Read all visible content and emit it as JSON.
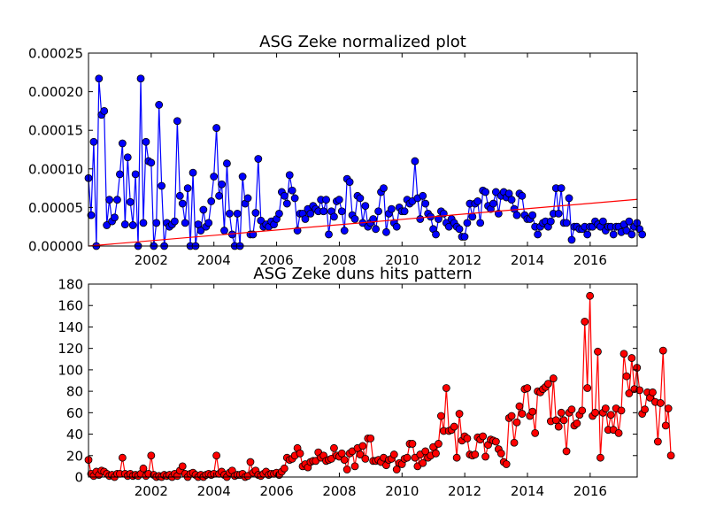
{
  "chart_data": [
    {
      "type": "line",
      "title": "ASG Zeke normalized plot",
      "xlabel": "",
      "ylabel": "",
      "xlim": [
        2000.0,
        2017.5
      ],
      "ylim": [
        0,
        0.00025
      ],
      "x_ticks": [
        "2002",
        "2004",
        "2006",
        "2008",
        "2010",
        "2012",
        "2014",
        "2016"
      ],
      "y_ticks": [
        "0.00000",
        "0.00005",
        "0.00010",
        "0.00015",
        "0.00020",
        "0.00025"
      ],
      "grid": false,
      "series": [
        {
          "color": "#0000ff",
          "marker": "circle",
          "x_start": 2000.0,
          "x_step": 0.0833,
          "values": [
            8.8e-05,
            4e-05,
            0.000135,
            0,
            0.000217,
            0.00017,
            0.000175,
            2.7e-05,
            6e-05,
            3.2e-05,
            3.7e-05,
            6e-05,
            9.3e-05,
            0.000133,
            2.8e-05,
            0.000115,
            5.7e-05,
            2.7e-05,
            9.3e-05,
            0,
            0.000217,
            3e-05,
            0.000135,
            0.00011,
            0.000108,
            0,
            3e-05,
            0.000183,
            7.8e-05,
            0,
            3e-05,
            2.5e-05,
            2.8e-05,
            3.2e-05,
            0.000162,
            6.5e-05,
            5.5e-05,
            3e-05,
            7.5e-05,
            0,
            9.5e-05,
            0,
            2.8e-05,
            2e-05,
            4.7e-05,
            2.5e-05,
            3e-05,
            5.8e-05,
            9e-05,
            0.000153,
            6.5e-05,
            8e-05,
            2e-05,
            0.000107,
            4.2e-05,
            1.5e-05,
            0,
            4.2e-05,
            0,
            9e-05,
            5.5e-05,
            6.2e-05,
            1.5e-05,
            1.5e-05,
            4.3e-05,
            0.000113,
            3.3e-05,
            2.5e-05,
            2.8e-05,
            2.5e-05,
            3.2e-05,
            2.8e-05,
            3.5e-05,
            4.2e-05,
            7e-05,
            6.5e-05,
            5.5e-05,
            9.2e-05,
            7.2e-05,
            6.2e-05,
            2e-05,
            4.2e-05,
            4.2e-05,
            3.5e-05,
            4.8e-05,
            4.2e-05,
            5.2e-05,
            4.8e-05,
            4.5e-05,
            6e-05,
            4.5e-05,
            6e-05,
            1.5e-05,
            4.5e-05,
            3.8e-05,
            5.8e-05,
            6e-05,
            4.5e-05,
            2e-05,
            8.7e-05,
            8.3e-05,
            4e-05,
            3.5e-05,
            6.5e-05,
            6.2e-05,
            3e-05,
            5.2e-05,
            2.5e-05,
            3e-05,
            3.5e-05,
            2.2e-05,
            4.5e-05,
            7e-05,
            7.5e-05,
            1.8e-05,
            4.2e-05,
            4.8e-05,
            3e-05,
            2.5e-05,
            5e-05,
            4.5e-05,
            4.5e-05,
            6e-05,
            5.5e-05,
            5.8e-05,
            0.00011,
            6.2e-05,
            3.5e-05,
            6.5e-05,
            5.5e-05,
            4.2e-05,
            3.8e-05,
            2.2e-05,
            1.5e-05,
            3.5e-05,
            4.5e-05,
            4.2e-05,
            3e-05,
            2.5e-05,
            3.5e-05,
            3e-05,
            2.5e-05,
            2.2e-05,
            1.2e-05,
            1.2e-05,
            3e-05,
            5.5e-05,
            3.8e-05,
            5.5e-05,
            5.8e-05,
            3e-05,
            7.2e-05,
            7e-05,
            5.2e-05,
            4.8e-05,
            5.5e-05,
            7e-05,
            4.2e-05,
            6.5e-05,
            7e-05,
            6.3e-05,
            6.8e-05,
            6e-05,
            4.8e-05,
            4e-05,
            6.8e-05,
            6.5e-05,
            4e-05,
            3.5e-05,
            3.5e-05,
            4e-05,
            2.5e-05,
            1.5e-05,
            2.5e-05,
            3e-05,
            3.2e-05,
            2.5e-05,
            3.2e-05,
            4.2e-05,
            7.5e-05,
            4.2e-05,
            7.5e-05,
            3e-05,
            3e-05,
            6.2e-05,
            8e-06,
            2.5e-05,
            2.5e-05,
            2.2e-05,
            2.2e-05,
            2.5e-05,
            1.5e-05,
            2.5e-05,
            2.5e-05,
            3.2e-05,
            2.8e-05,
            2.5e-05,
            3.2e-05,
            2e-05,
            2.5e-05,
            2.5e-05,
            1.5e-05,
            2.5e-05,
            2.5e-05,
            1.8e-05,
            2.8e-05,
            2e-05,
            3.2e-05,
            1.5e-05,
            2.5e-05,
            3e-05,
            2.2e-05,
            1.5e-05
          ]
        },
        {
          "color": "#ff0000",
          "marker": "none",
          "x": [
            2000.0,
            2017.5
          ],
          "values": [
            0.0,
            6.05e-05
          ]
        }
      ]
    },
    {
      "type": "line",
      "title": "ASG Zeke duns hits pattern",
      "xlabel": "",
      "ylabel": "",
      "xlim": [
        2000.0,
        2017.5
      ],
      "ylim": [
        0,
        180
      ],
      "x_ticks": [
        "2002",
        "2004",
        "2006",
        "2008",
        "2010",
        "2012",
        "2014",
        "2016"
      ],
      "y_ticks": [
        "0",
        "20",
        "40",
        "60",
        "80",
        "100",
        "120",
        "140",
        "160",
        "180"
      ],
      "grid": false,
      "series": [
        {
          "color": "#ff0000",
          "marker": "circle",
          "x_start": 2000.0,
          "x_step": 0.0833,
          "values": [
            16,
            3,
            1,
            5,
            2,
            6,
            5,
            3,
            1,
            2,
            0,
            3,
            3,
            18,
            3,
            1,
            3,
            1,
            2,
            1,
            3,
            8,
            1,
            3,
            20,
            2,
            0,
            1,
            0,
            2,
            1,
            2,
            0,
            3,
            1,
            6,
            10,
            3,
            0,
            3,
            4,
            2,
            0,
            2,
            0,
            2,
            3,
            2,
            3,
            20,
            3,
            5,
            2,
            0,
            4,
            6,
            1,
            2,
            2,
            3,
            0,
            1,
            14,
            4,
            6,
            2,
            1,
            3,
            5,
            2,
            3,
            3,
            4,
            2,
            5,
            8,
            18,
            16,
            17,
            20,
            27,
            22,
            10,
            12,
            9,
            14,
            15,
            15,
            23,
            18,
            20,
            15,
            16,
            17,
            27,
            20,
            19,
            22,
            16,
            7,
            22,
            24,
            10,
            27,
            21,
            29,
            17,
            36,
            36,
            15,
            15,
            16,
            14,
            18,
            11,
            16,
            17,
            21,
            7,
            13,
            12,
            17,
            18,
            31,
            31,
            18,
            10,
            21,
            13,
            24,
            18,
            20,
            28,
            22,
            31,
            57,
            43,
            83,
            43,
            44,
            47,
            18,
            59,
            34,
            38,
            36,
            21,
            20,
            21,
            37,
            35,
            38,
            19,
            30,
            35,
            34,
            33,
            26,
            22,
            14,
            12,
            55,
            57,
            32,
            51,
            66,
            59,
            82,
            83,
            57,
            61,
            41,
            80,
            79,
            82,
            84,
            87,
            52,
            92,
            53,
            47,
            60,
            53,
            24,
            60,
            63,
            48,
            50,
            58,
            62,
            145,
            83,
            169,
            57,
            60,
            117,
            18,
            60,
            64,
            44,
            58,
            44,
            64,
            41,
            62,
            115,
            94,
            78,
            111,
            82,
            102,
            81,
            59,
            63,
            79,
            74,
            79,
            70,
            33,
            69,
            118,
            48,
            64,
            20
          ]
        }
      ]
    }
  ]
}
